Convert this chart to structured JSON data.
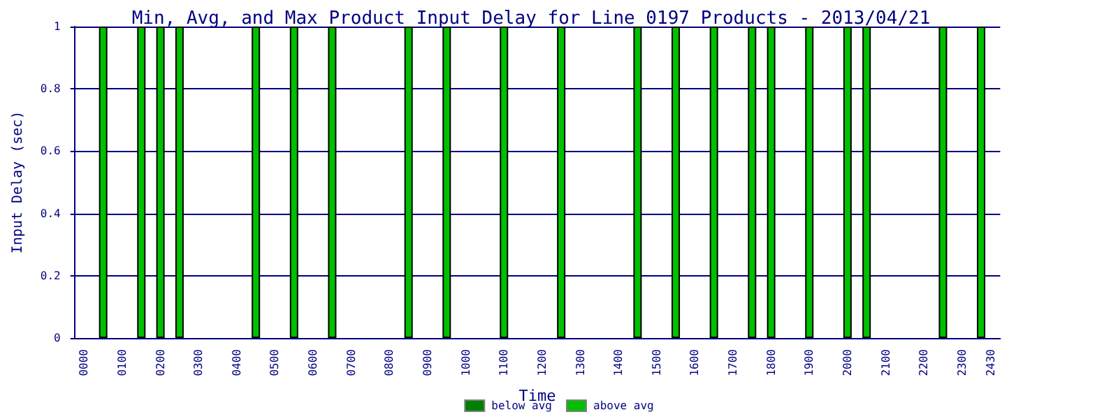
{
  "chart_data": {
    "type": "bar",
    "stacked": true,
    "title": "Min, Avg, and Max Product Input Delay for Line 0197 Products - 2013/04/21",
    "xlabel": "Time",
    "ylabel": "Input Delay (sec)",
    "categories": [
      null,
      "0000",
      null,
      null,
      null,
      "0100",
      null,
      null,
      null,
      "0200",
      null,
      null,
      null,
      "0300",
      null,
      null,
      null,
      "0400",
      null,
      null,
      null,
      "0500",
      null,
      null,
      null,
      "0600",
      null,
      null,
      null,
      "0700",
      null,
      null,
      null,
      "0800",
      null,
      null,
      null,
      "0900",
      null,
      null,
      null,
      "1000",
      null,
      null,
      null,
      "1100",
      null,
      null,
      null,
      "1200",
      null,
      null,
      null,
      "1300",
      null,
      null,
      null,
      "1400",
      null,
      null,
      null,
      "1500",
      null,
      null,
      null,
      "1600",
      null,
      null,
      null,
      "1700",
      null,
      null,
      null,
      "1800",
      null,
      null,
      null,
      "1900",
      null,
      null,
      null,
      "2000",
      null,
      null,
      null,
      "2100",
      null,
      null,
      null,
      "2200",
      null,
      null,
      null,
      "2300",
      null,
      null,
      "2430",
      null
    ],
    "series": [
      {
        "name": "below avg",
        "color": "#008000",
        "values": [
          null,
          null,
          null,
          null,
          null,
          null,
          null,
          null,
          null,
          null,
          null,
          null,
          null,
          null,
          null,
          null,
          null,
          null,
          null,
          null,
          null,
          null,
          null,
          null,
          null,
          null,
          null,
          null,
          null,
          null,
          null,
          null,
          null,
          null,
          null,
          null,
          null,
          null,
          null,
          null,
          null,
          null,
          null,
          null,
          null,
          null,
          null,
          null,
          null,
          null,
          null,
          null,
          null,
          null,
          null,
          null,
          null,
          null,
          null,
          null,
          null,
          null,
          null,
          null,
          null,
          null,
          null,
          null,
          null,
          null,
          null,
          null,
          null,
          null,
          null,
          null,
          null,
          null,
          null,
          null,
          null,
          null,
          null,
          null,
          null,
          null,
          null,
          null,
          null,
          null,
          null,
          null,
          null,
          null,
          null,
          null,
          null,
          null
        ]
      },
      {
        "name": "above avg",
        "color": "#00c000",
        "values": [
          null,
          null,
          null,
          1,
          null,
          null,
          null,
          1,
          null,
          1,
          null,
          1,
          null,
          null,
          null,
          null,
          null,
          null,
          null,
          1,
          null,
          null,
          null,
          1,
          null,
          null,
          null,
          1,
          null,
          null,
          null,
          null,
          null,
          null,
          null,
          1,
          null,
          null,
          null,
          1,
          null,
          null,
          null,
          null,
          null,
          1,
          null,
          null,
          null,
          null,
          null,
          1,
          null,
          null,
          null,
          null,
          null,
          null,
          null,
          1,
          null,
          null,
          null,
          1,
          null,
          null,
          null,
          1,
          null,
          null,
          null,
          1,
          null,
          1,
          null,
          null,
          null,
          1,
          null,
          null,
          null,
          1,
          null,
          1,
          null,
          null,
          null,
          null,
          null,
          null,
          null,
          1,
          null,
          null,
          null,
          1,
          null,
          null
        ]
      }
    ],
    "ylim": [
      0,
      1
    ],
    "yticks": [
      0,
      0.2,
      0.4,
      0.6,
      0.8,
      1
    ],
    "grid": "y",
    "legend": "bottom"
  }
}
